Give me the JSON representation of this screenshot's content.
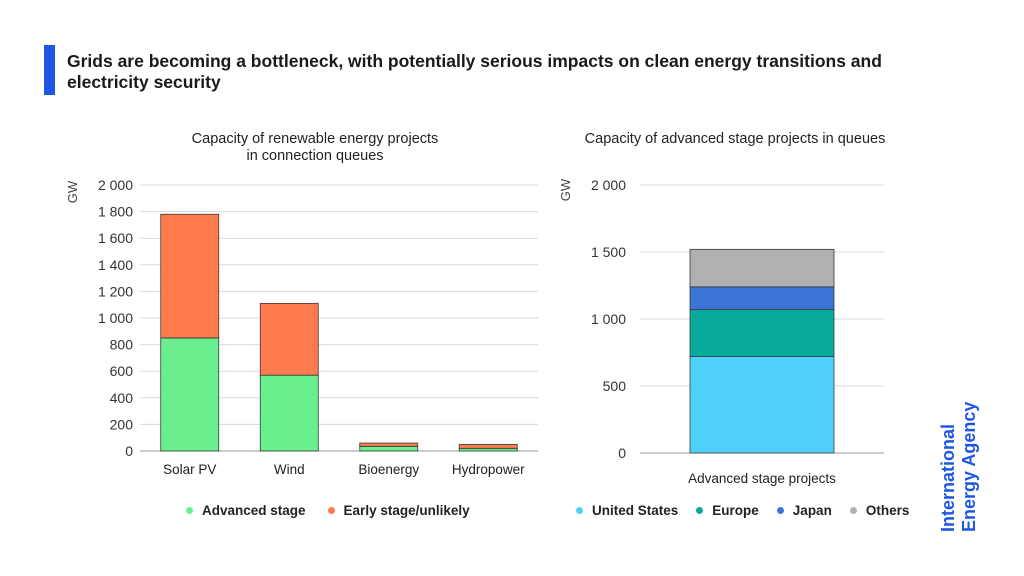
{
  "headline": "Grids are becoming a bottleneck, with potentially serious impacts on clean energy transitions and electricity security",
  "colors": {
    "accent": "#1f57e5"
  },
  "chart_data": [
    {
      "type": "bar",
      "stacked": true,
      "title_line1": "Capacity of renewable energy projects",
      "title_line2": "in connection queues",
      "ylabel": "GW",
      "ylim": [
        0,
        2000
      ],
      "yticks": [
        0,
        200,
        400,
        600,
        800,
        1000,
        1200,
        1400,
        1600,
        1800,
        2000
      ],
      "ytick_labels": [
        "0",
        "200",
        "400",
        "600",
        "800",
        "1 000",
        "1 200",
        "1 400",
        "1 600",
        "1 800",
        "2 000"
      ],
      "categories": [
        "Solar PV",
        "Wind",
        "Bioenergy",
        "Hydropower"
      ],
      "series": [
        {
          "name": "Advanced stage",
          "color": "#6aef8e",
          "values": [
            850,
            570,
            35,
            20
          ]
        },
        {
          "name": "Early stage/unlikely",
          "color": "#ff7a4d",
          "values": [
            930,
            540,
            25,
            30
          ]
        }
      ],
      "grid": true,
      "legend": "bottom"
    },
    {
      "type": "bar",
      "stacked": true,
      "title": "Capacity of advanced stage projects in queues",
      "ylabel": "GW",
      "ylim": [
        0,
        2000
      ],
      "yticks": [
        0,
        500,
        1000,
        1500,
        2000
      ],
      "ytick_labels": [
        "0",
        "500",
        "1 000",
        "1 500",
        "2 000"
      ],
      "categories": [
        "Advanced stage projects"
      ],
      "series": [
        {
          "name": "United States",
          "color": "#4fd0fb",
          "values": [
            720
          ]
        },
        {
          "name": "Europe",
          "color": "#0aa99e",
          "values": [
            350
          ]
        },
        {
          "name": "Japan",
          "color": "#3a74d6",
          "values": [
            170
          ]
        },
        {
          "name": "Others",
          "color": "#b0b0b0",
          "values": [
            280
          ]
        }
      ],
      "grid": true,
      "legend": "bottom"
    }
  ],
  "logo": {
    "line1": "International",
    "line2": "Energy Agency"
  }
}
